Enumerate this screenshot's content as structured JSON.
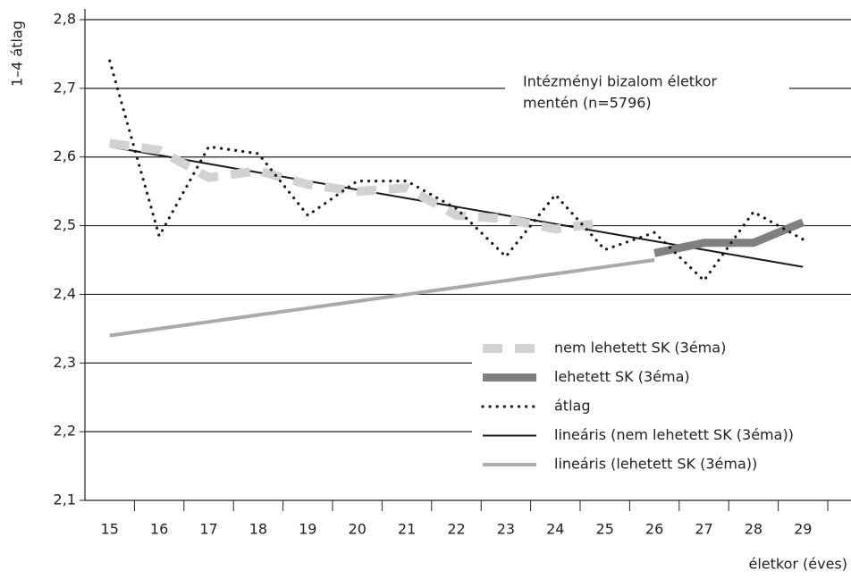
{
  "chart_data": {
    "type": "line",
    "title": "Intézményi bizalom életkor mentén (n=5796)",
    "y_label": "1–4 átlag",
    "x_label": "életkor (éves)",
    "categories": [
      "15",
      "16",
      "17",
      "18",
      "19",
      "20",
      "21",
      "22",
      "23",
      "24",
      "25",
      "26",
      "27",
      "28",
      "29"
    ],
    "series": [
      {
        "name": "nem lehetett SK (3éma)",
        "color": "#d2d2d2",
        "values": [
          2.62,
          2.61,
          2.57,
          2.58,
          2.56,
          2.55,
          2.555,
          2.515,
          2.51,
          2.495,
          2.505,
          null,
          null,
          null,
          null
        ]
      },
      {
        "name": "lehetett SK (3éma)",
        "color": "#808080",
        "values": [
          null,
          null,
          null,
          null,
          null,
          null,
          null,
          null,
          null,
          null,
          null,
          2.46,
          2.475,
          2.475,
          2.505
        ]
      },
      {
        "name": "átlag",
        "color": "#1a1a1a",
        "values": [
          2.74,
          2.485,
          2.615,
          2.605,
          2.515,
          2.565,
          2.565,
          2.525,
          2.455,
          2.545,
          2.465,
          2.49,
          2.42,
          2.52,
          2.48
        ]
      },
      {
        "name": "lineáris (nem lehetett SK (3éma))",
        "color": "#1a1a1a",
        "values": [
          2.615,
          2.6025,
          2.59,
          2.5775,
          2.565,
          2.5525,
          2.54,
          2.5275,
          2.515,
          2.5025,
          2.49,
          2.4775,
          2.465,
          2.4525,
          2.44
        ]
      },
      {
        "name": "lineáris (lehetett SK (3éma))",
        "color": "#aaaaaa",
        "values": [
          2.34,
          2.35,
          2.36,
          2.37,
          2.38,
          2.39,
          2.4,
          2.41,
          2.42,
          2.43,
          2.44,
          2.45,
          null,
          null,
          null
        ]
      }
    ],
    "ylim": [
      2.1,
      2.8
    ],
    "yticks": [
      {
        "value": 2.1,
        "label": "2,1"
      },
      {
        "value": 2.2,
        "label": "2,2"
      },
      {
        "value": 2.3,
        "label": "2,3"
      },
      {
        "value": 2.4,
        "label": "2,4"
      },
      {
        "value": 2.5,
        "label": "2,5"
      },
      {
        "value": 2.6,
        "label": "2,6"
      },
      {
        "value": 2.7,
        "label": "2,7"
      },
      {
        "value": 2.8,
        "label": "2,8"
      }
    ],
    "grid": true
  }
}
